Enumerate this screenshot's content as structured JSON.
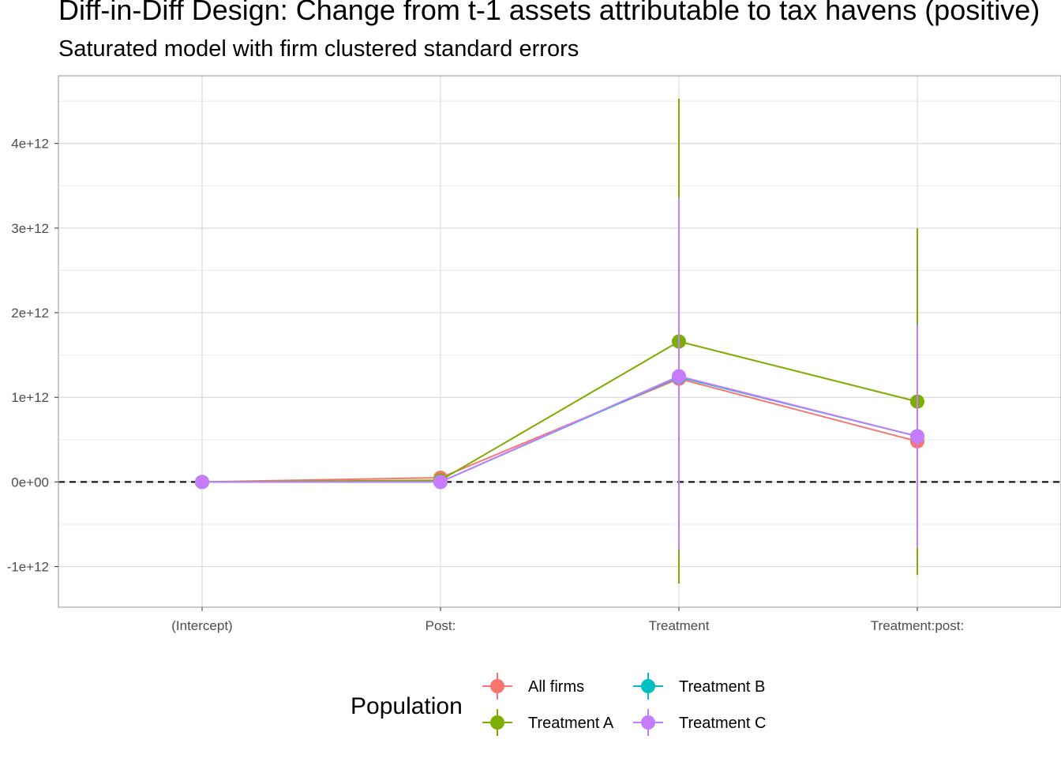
{
  "chart_data": {
    "type": "line",
    "title": "Diff-in-Diff Design: Change from t-1 assets attributable to tax havens (positive)",
    "subtitle": "Saturated model with firm clustered standard errors",
    "xlabel": "",
    "ylabel": "",
    "categories": [
      "(Intercept)",
      "Post:",
      "Treatment",
      "Treatment:post:"
    ],
    "ylim": [
      -1480000000000.0,
      4800000000000.0
    ],
    "yticks": [
      -1000000000000.0,
      0,
      1000000000000.0,
      2000000000000.0,
      3000000000000.0,
      4000000000000.0
    ],
    "ytick_labels": [
      "-1e+12",
      "0e+00",
      "1e+12",
      "2e+12",
      "3e+12",
      "4e+12"
    ],
    "reference_line": {
      "y": 0,
      "style": "dashed",
      "color": "#000000"
    },
    "grid": true,
    "legend": {
      "title": "Population",
      "position": "bottom"
    },
    "series": [
      {
        "name": "All firms",
        "color": "#F8766D",
        "values": [
          0,
          50000000000.0,
          1220000000000.0,
          480000000000.0
        ],
        "lower": [
          0,
          0,
          -850000000000.0,
          -850000000000.0
        ],
        "upper": [
          0,
          100000000000.0,
          3300000000000.0,
          1850000000000.0
        ]
      },
      {
        "name": "Treatment A",
        "color": "#7CAE00",
        "values": [
          0,
          20000000000.0,
          1660000000000.0,
          950000000000.0
        ],
        "lower": [
          0,
          0,
          -1200000000000.0,
          -1100000000000.0
        ],
        "upper": [
          0,
          50000000000.0,
          4530000000000.0,
          3000000000000.0
        ]
      },
      {
        "name": "Treatment B",
        "color": "#00BFC4",
        "values": [
          0,
          0,
          1240000000000.0,
          540000000000.0
        ],
        "lower": [
          0,
          0,
          -800000000000.0,
          -780000000000.0
        ],
        "upper": [
          0,
          0,
          3320000000000.0,
          1860000000000.0
        ]
      },
      {
        "name": "Treatment C",
        "color": "#C77CFF",
        "values": [
          0,
          0,
          1250000000000.0,
          540000000000.0
        ],
        "lower": [
          0,
          0,
          -800000000000.0,
          -780000000000.0
        ],
        "upper": [
          0,
          0,
          3350000000000.0,
          1850000000000.0
        ]
      }
    ]
  }
}
